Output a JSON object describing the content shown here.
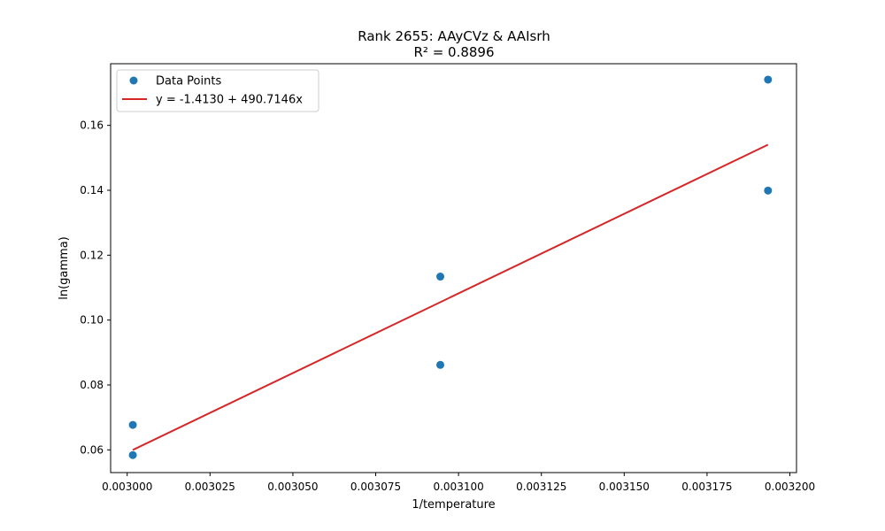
{
  "chart_data": {
    "type": "scatter",
    "title": "Rank 2655: AAyCVz & AAIsrh",
    "subtitle": "R² = 0.8896",
    "xlabel": "1/temperature",
    "ylabel": "ln(gamma)",
    "xlim": [
      0.002995,
      0.003202
    ],
    "ylim": [
      0.053,
      0.179
    ],
    "xticks": [
      0.003,
      0.003025,
      0.00305,
      0.003075,
      0.0031,
      0.003125,
      0.00315,
      0.003175,
      0.0032
    ],
    "xtick_labels": [
      "0.003000",
      "0.003025",
      "0.003050",
      "0.003075",
      "0.003100",
      "0.003125",
      "0.003150",
      "0.003175",
      "0.003200"
    ],
    "yticks": [
      0.06,
      0.08,
      0.1,
      0.12,
      0.14,
      0.16
    ],
    "ytick_labels": [
      "0.06",
      "0.08",
      "0.10",
      "0.12",
      "0.14",
      "0.16"
    ],
    "grid": false,
    "legend_position": "top-left",
    "series": [
      {
        "name": "Data Points",
        "kind": "scatter",
        "color": "#1f77b4",
        "points": [
          [
            0.0030017,
            0.0677
          ],
          [
            0.0030017,
            0.0584
          ],
          [
            0.0030945,
            0.1134
          ],
          [
            0.0030945,
            0.0862
          ],
          [
            0.0031934,
            0.1741
          ],
          [
            0.0031934,
            0.1399
          ]
        ]
      },
      {
        "name": "y = -1.4130 + 490.7146x",
        "kind": "line",
        "color": "#d62728",
        "intercept": -1.413,
        "slope": 490.7146,
        "x_range": [
          0.0030017,
          0.0031934
        ]
      }
    ]
  }
}
